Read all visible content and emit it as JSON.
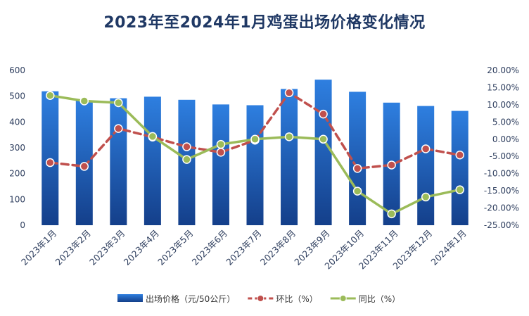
{
  "chart_data": {
    "type": "bar",
    "title": "2023年至2024年1月鸡蛋出场价格变化情况",
    "categories": [
      "2023年1月",
      "2023年2月",
      "2023年3月",
      "2023年4月",
      "2023年5月",
      "2023年6月",
      "2023年7月",
      "2023年8月",
      "2023年9月",
      "2023年10月",
      "2023年11月",
      "2023年12月",
      "2024年1月"
    ],
    "ylim_left": [
      0,
      600
    ],
    "yticks_left": [
      "0",
      "100",
      "200",
      "300",
      "400",
      "500",
      "600"
    ],
    "ylim_right": [
      -25,
      20
    ],
    "yticks_right": [
      "-25.00%",
      "-20.00%",
      "-15.00%",
      "-10.00%",
      "-5.00%",
      "0.00%",
      "5.00%",
      "10.00%",
      "15.00%",
      "20.00%"
    ],
    "grid": false,
    "legend_position": "bottom",
    "series": [
      {
        "name": "出场价格（元/50公斤）",
        "kind": "bar",
        "axis": "left",
        "values": [
          519,
          484,
          492,
          498,
          486,
          468,
          465,
          528,
          564,
          517,
          475,
          462,
          443
        ],
        "color": "#2e75d6"
      },
      {
        "name": "环比（%）",
        "kind": "line",
        "axis": "right",
        "style": "dashed",
        "values": [
          -6.8,
          -7.9,
          3.1,
          0.6,
          -2.2,
          -3.8,
          -0.3,
          13.5,
          7.3,
          -8.5,
          -7.5,
          -2.8,
          -4.6
        ],
        "color": "#c0504d"
      },
      {
        "name": "同比（%）",
        "kind": "line",
        "axis": "right",
        "style": "solid",
        "values": [
          12.7,
          11.1,
          10.6,
          0.8,
          -5.9,
          -1.5,
          0.0,
          0.7,
          0.0,
          -15.1,
          -21.7,
          -16.8,
          -14.7
        ],
        "color": "#9bbb59"
      }
    ]
  }
}
